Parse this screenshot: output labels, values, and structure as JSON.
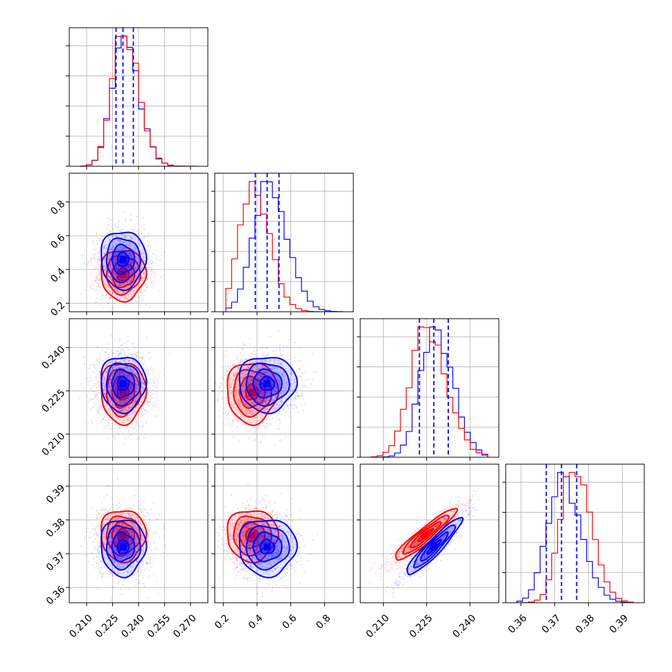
{
  "chart_data": {
    "type": "corner",
    "grid": true,
    "legend": "none",
    "colors": {
      "a": "#0000ff",
      "b": "#ff0000"
    },
    "parameters": [
      {
        "range": [
          0.2,
          0.28
        ],
        "ticks": [
          0.21,
          0.225,
          0.24,
          0.255,
          0.27
        ],
        "tick_labels": [
          "0.210",
          "0.225",
          "0.240",
          "0.255",
          "0.270"
        ],
        "median": 0.231,
        "lo": 0.227,
        "hi": 0.237,
        "sd_a": 0.0065,
        "sd_b": 0.0065
      },
      {
        "range": [
          0.15,
          0.97
        ],
        "ticks": [
          0.2,
          0.4,
          0.6,
          0.8
        ],
        "tick_labels": [
          "0.2",
          "0.4",
          "0.6",
          "0.8"
        ],
        "median": 0.46,
        "lo": 0.39,
        "hi": 0.53,
        "mean_a": 0.46,
        "mean_b": 0.37,
        "sd_a": 0.085,
        "sd_b": 0.075
      },
      {
        "range": [
          0.202,
          0.25
        ],
        "ticks": [
          0.21,
          0.225,
          0.24
        ],
        "tick_labels": [
          "0.210",
          "0.225",
          "0.240"
        ],
        "median": 0.2275,
        "lo": 0.2225,
        "hi": 0.2325,
        "mean_a": 0.2275,
        "mean_b": 0.2245,
        "sd_a": 0.0048,
        "sd_b": 0.0053
      },
      {
        "range": [
          0.3555,
          0.3965
        ],
        "ticks": [
          0.36,
          0.37,
          0.38,
          0.39
        ],
        "tick_labels": [
          "0.36",
          "0.37",
          "0.38",
          "0.39"
        ],
        "median": 0.372,
        "lo": 0.3675,
        "hi": 0.3765,
        "mean_a": 0.372,
        "mean_b": 0.3755,
        "sd_a": 0.0042,
        "sd_b": 0.0038
      }
    ],
    "pairs": [
      {
        "row": 1,
        "col": 0,
        "a": {
          "mx": 0.231,
          "my": 0.46,
          "sx": 0.0065,
          "sy": 0.085,
          "rho": 0.0
        },
        "b": {
          "mx": 0.231,
          "my": 0.37,
          "sx": 0.0065,
          "sy": 0.075,
          "rho": 0.0
        }
      },
      {
        "row": 2,
        "col": 0,
        "a": {
          "mx": 0.231,
          "my": 0.2275,
          "sx": 0.0065,
          "sy": 0.0048,
          "rho": 0.0
        },
        "b": {
          "mx": 0.231,
          "my": 0.2245,
          "sx": 0.0065,
          "sy": 0.0053,
          "rho": 0.0
        }
      },
      {
        "row": 2,
        "col": 1,
        "a": {
          "mx": 0.46,
          "my": 0.2275,
          "sx": 0.085,
          "sy": 0.0048,
          "rho": 0.0
        },
        "b": {
          "mx": 0.37,
          "my": 0.2245,
          "sx": 0.075,
          "sy": 0.0053,
          "rho": 0.0
        }
      },
      {
        "row": 3,
        "col": 0,
        "a": {
          "mx": 0.231,
          "my": 0.372,
          "sx": 0.0065,
          "sy": 0.0042,
          "rho": 0.0
        },
        "b": {
          "mx": 0.231,
          "my": 0.3755,
          "sx": 0.0065,
          "sy": 0.0038,
          "rho": 0.0
        }
      },
      {
        "row": 3,
        "col": 1,
        "a": {
          "mx": 0.46,
          "my": 0.372,
          "sx": 0.085,
          "sy": 0.0042,
          "rho": 0.0
        },
        "b": {
          "mx": 0.37,
          "my": 0.3755,
          "sx": 0.075,
          "sy": 0.0038,
          "rho": 0.0
        }
      },
      {
        "row": 3,
        "col": 2,
        "a": {
          "mx": 0.2275,
          "my": 0.372,
          "sx": 0.0048,
          "sy": 0.0042,
          "rho": 0.93
        },
        "b": {
          "mx": 0.2245,
          "my": 0.3755,
          "sx": 0.0053,
          "sy": 0.0038,
          "rho": 0.93
        }
      }
    ]
  }
}
